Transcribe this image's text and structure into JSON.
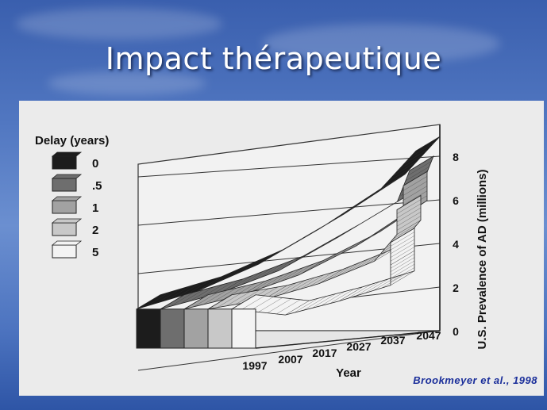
{
  "slide": {
    "title": "Impact thérapeutique"
  },
  "citation": "Brookmeyer et al., 1998",
  "chart_data": {
    "type": "area",
    "title": "",
    "legend_title": "Delay (years)",
    "legend_position": "top-left",
    "xlabel": "Year",
    "ylabel": "U.S. Prevalence of AD (millions)",
    "x": [
      1997,
      2007,
      2017,
      2027,
      2037,
      2047
    ],
    "x_ticks": [
      "1997",
      "2007",
      "2017",
      "2027",
      "2037",
      "2047"
    ],
    "y_ticks": [
      "0",
      "2",
      "4",
      "6",
      "8"
    ],
    "ylim": [
      0,
      9
    ],
    "grid": true,
    "series": [
      {
        "name": "0",
        "values": [
          2.3,
          3.0,
          4.1,
          5.6,
          7.3,
          8.9
        ],
        "color": "#1c1c1c"
      },
      {
        "name": ".5",
        "values": [
          2.3,
          2.9,
          3.8,
          5.2,
          6.7,
          8.0
        ],
        "color": "#6e6e6e"
      },
      {
        "name": "1",
        "values": [
          2.3,
          2.8,
          3.6,
          4.8,
          6.1,
          7.3
        ],
        "color": "#a2a2a2"
      },
      {
        "name": "2",
        "values": [
          2.3,
          2.6,
          3.2,
          4.1,
          5.2,
          6.2
        ],
        "color": "#c8c8c8"
      },
      {
        "name": "5",
        "values": [
          2.3,
          1.9,
          2.4,
          3.0,
          3.8,
          4.7
        ],
        "color": "#f3f3f3"
      }
    ]
  }
}
